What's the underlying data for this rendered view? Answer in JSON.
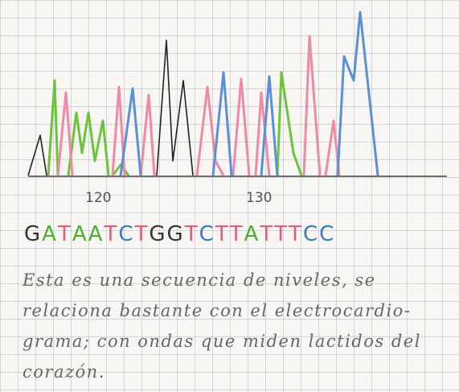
{
  "axis_labels": [
    "120",
    "130"
  ],
  "sequence": [
    {
      "letter": "G",
      "color": "#333333"
    },
    {
      "letter": "A",
      "color": "#4caf2a"
    },
    {
      "letter": "T",
      "color": "#e0607a"
    },
    {
      "letter": "A",
      "color": "#4caf2a"
    },
    {
      "letter": "A",
      "color": "#4caf2a"
    },
    {
      "letter": "T",
      "color": "#e0607a"
    },
    {
      "letter": "C",
      "color": "#3a78c8"
    },
    {
      "letter": "T",
      "color": "#e0607a"
    },
    {
      "letter": "G",
      "color": "#333333"
    },
    {
      "letter": "G",
      "color": "#333333"
    },
    {
      "letter": "T",
      "color": "#e0607a"
    },
    {
      "letter": "C",
      "color": "#3a78c8"
    },
    {
      "letter": "T",
      "color": "#e0607a"
    },
    {
      "letter": "T",
      "color": "#e0607a"
    },
    {
      "letter": "A",
      "color": "#4caf2a"
    },
    {
      "letter": "T",
      "color": "#e0607a"
    },
    {
      "letter": "T",
      "color": "#e0607a"
    },
    {
      "letter": "T",
      "color": "#e0607a"
    },
    {
      "letter": "C",
      "color": "#3a78c8"
    },
    {
      "letter": "C",
      "color": "#3a78c8"
    }
  ],
  "note_lines": [
    "Esta es una secuencia de niveles, se",
    "relaciona bastante con el electrocardio-",
    "grama; con ondas que miden lactidos del",
    "corazón."
  ]
}
